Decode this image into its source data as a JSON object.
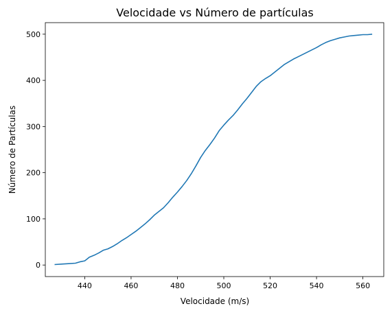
{
  "chart_data": {
    "type": "line",
    "title": "Velocidade vs Número de partículas",
    "xlabel": "Velocidade (m/s)",
    "ylabel": "Número de Partículas",
    "xlim": [
      423,
      569
    ],
    "ylim": [
      -25,
      525
    ],
    "xticks": [
      440,
      460,
      480,
      500,
      520,
      540,
      560
    ],
    "yticks": [
      0,
      100,
      200,
      300,
      400,
      500
    ],
    "grid": false,
    "line_color": "#1f77b4",
    "series": [
      {
        "x": [
          427,
          430,
          433,
          436,
          438,
          440,
          441,
          442,
          444,
          446,
          448,
          450,
          452,
          454,
          456,
          458,
          460,
          462,
          464,
          466,
          468,
          470,
          472,
          474,
          476,
          478,
          480,
          482,
          484,
          486,
          488,
          490,
          492,
          494,
          496,
          498,
          500,
          502,
          504,
          506,
          508,
          510,
          512,
          514,
          516,
          518,
          520,
          522,
          524,
          526,
          528,
          530,
          532,
          534,
          536,
          538,
          540,
          542,
          544,
          546,
          548,
          550,
          552,
          554,
          556,
          558,
          560,
          562,
          564
        ],
        "y": [
          1,
          2,
          3,
          4,
          7,
          9,
          13,
          17,
          21,
          26,
          32,
          35,
          40,
          46,
          53,
          59,
          66,
          73,
          81,
          89,
          98,
          108,
          116,
          124,
          135,
          147,
          158,
          170,
          183,
          198,
          215,
          233,
          248,
          261,
          275,
          291,
          303,
          314,
          324,
          336,
          349,
          361,
          374,
          387,
          397,
          404,
          410,
          418,
          426,
          434,
          440,
          446,
          451,
          456,
          461,
          466,
          471,
          477,
          482,
          486,
          489,
          492,
          494,
          496,
          497,
          498,
          499,
          499,
          500
        ]
      }
    ]
  }
}
